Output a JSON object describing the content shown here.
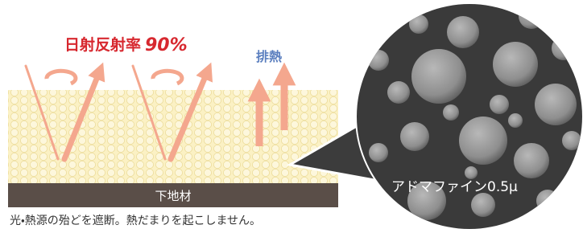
{
  "reflectance": {
    "label": "日射反射率",
    "value": "90%"
  },
  "exhaust": "排熱",
  "base_layer": "下地材",
  "micrograph_label": "アドマファイン0.5μ",
  "caption": "光・熱源の殆どを遮断。熱だまりを起こしません。"
}
